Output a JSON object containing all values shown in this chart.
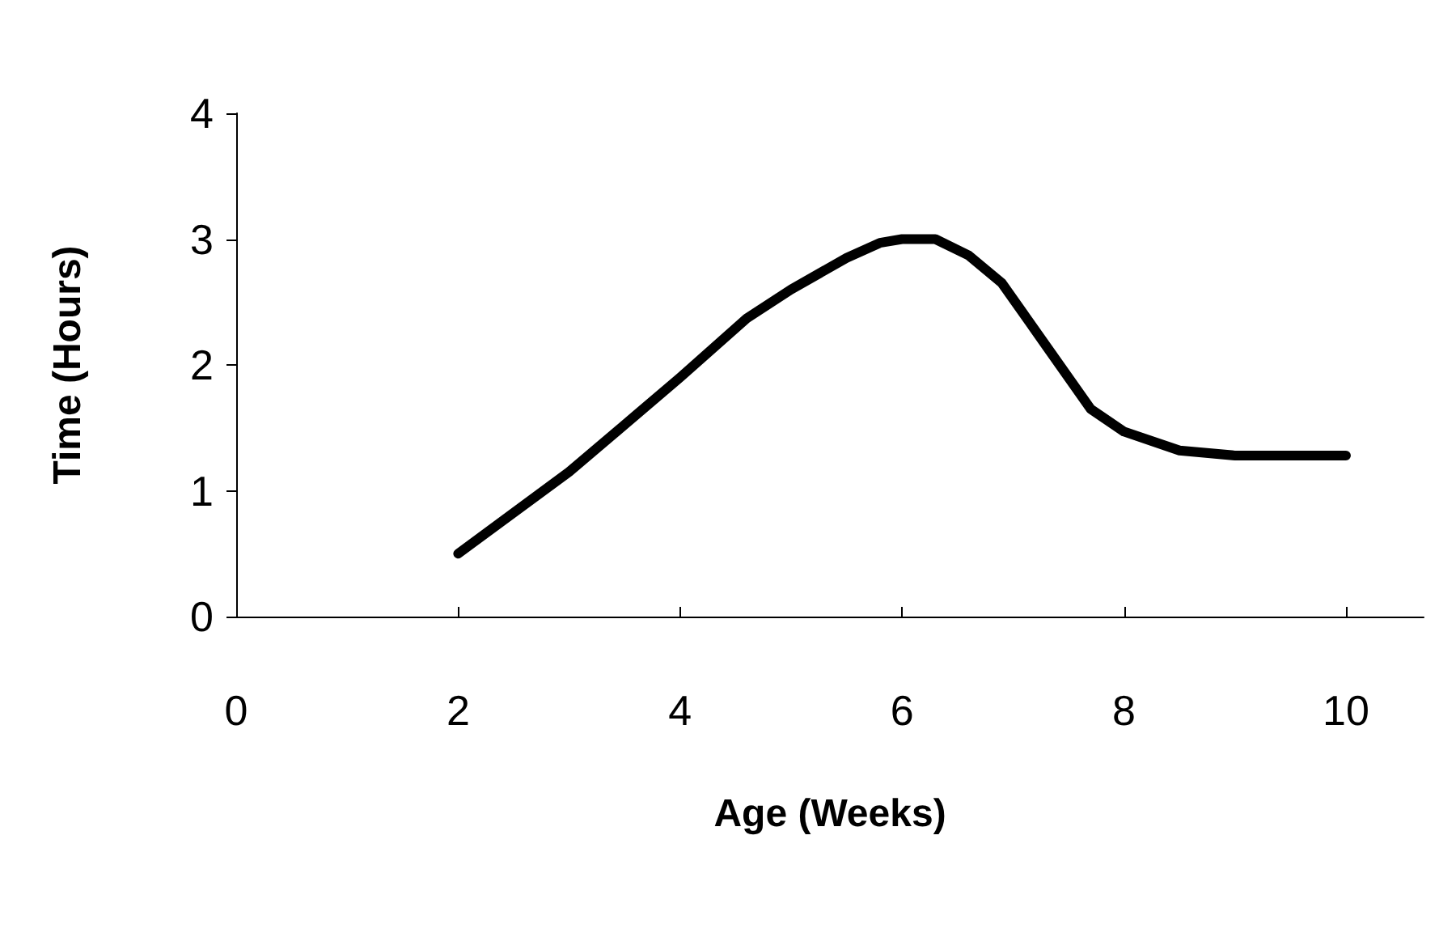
{
  "chart_data": {
    "type": "line",
    "xlabel": "Age (Weeks)",
    "ylabel": "Time (Hours)",
    "x": [
      2,
      3,
      4,
      4.6,
      5,
      5.5,
      5.8,
      6,
      6.3,
      6.6,
      6.9,
      7.3,
      7.7,
      8,
      8.5,
      9,
      10
    ],
    "series": [
      {
        "color": "#000000",
        "values": [
          0.5,
          1.15,
          1.9,
          2.37,
          2.6,
          2.85,
          2.97,
          3,
          3,
          2.87,
          2.65,
          2.15,
          1.65,
          1.47,
          1.32,
          1.28,
          1.28
        ]
      }
    ],
    "xlim": [
      0,
      10.7
    ],
    "xticks": [
      0,
      2,
      4,
      6,
      8,
      10
    ],
    "ylim": [
      0,
      4
    ],
    "yticks": [
      0,
      1,
      2,
      3,
      4
    ],
    "grid": false,
    "legend": false,
    "marker": "none",
    "line_style": "solid"
  }
}
